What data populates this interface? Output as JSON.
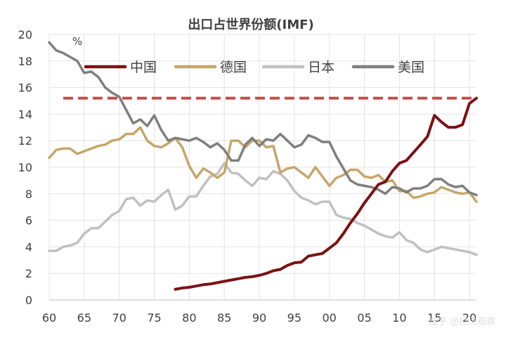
{
  "chart_data": {
    "type": "line",
    "title": "出口占世界份额(IMF)",
    "ylabel": "%",
    "xlabel": "",
    "xlim": [
      1960,
      2021
    ],
    "ylim": [
      0,
      20
    ],
    "grid": true,
    "legend_position": "top",
    "y_ticks": [
      0,
      2,
      4,
      6,
      8,
      10,
      12,
      14,
      16,
      18,
      20
    ],
    "x_ticks": [
      {
        "value": 1960,
        "label": "60"
      },
      {
        "value": 1965,
        "label": "65"
      },
      {
        "value": 1970,
        "label": "70"
      },
      {
        "value": 1975,
        "label": "75"
      },
      {
        "value": 1980,
        "label": "80"
      },
      {
        "value": 1985,
        "label": "85"
      },
      {
        "value": 1990,
        "label": "90"
      },
      {
        "value": 1995,
        "label": "95"
      },
      {
        "value": 2000,
        "label": "00"
      },
      {
        "value": 2005,
        "label": "05"
      },
      {
        "value": 2010,
        "label": "10"
      },
      {
        "value": 2015,
        "label": "15"
      },
      {
        "value": 2020,
        "label": "20"
      }
    ],
    "reference_line": {
      "y": 15.2,
      "x_start": 1962,
      "x_end": 2021,
      "color": "#c0504d",
      "style": "dashed"
    },
    "series": [
      {
        "name": "中国",
        "color": "#7b1113",
        "width": 4,
        "x": [
          1978,
          1979,
          1980,
          1981,
          1982,
          1983,
          1984,
          1985,
          1986,
          1987,
          1988,
          1989,
          1990,
          1991,
          1992,
          1993,
          1994,
          1995,
          1996,
          1997,
          1998,
          1999,
          2000,
          2001,
          2002,
          2003,
          2004,
          2005,
          2006,
          2007,
          2008,
          2009,
          2010,
          2011,
          2012,
          2013,
          2014,
          2015,
          2016,
          2017,
          2018,
          2019,
          2020,
          2021
        ],
        "values": [
          0.8,
          0.9,
          0.95,
          1.05,
          1.15,
          1.2,
          1.3,
          1.4,
          1.5,
          1.6,
          1.7,
          1.75,
          1.85,
          2.0,
          2.2,
          2.3,
          2.6,
          2.8,
          2.85,
          3.3,
          3.4,
          3.5,
          3.9,
          4.3,
          5.0,
          5.8,
          6.5,
          7.3,
          8.0,
          8.7,
          8.9,
          9.7,
          10.3,
          10.5,
          11.1,
          11.7,
          12.3,
          13.9,
          13.4,
          13.0,
          13.0,
          13.2,
          14.8,
          15.2
        ]
      },
      {
        "name": "德国",
        "color": "#c6a66a",
        "width": 3.5,
        "x": [
          1960,
          1961,
          1962,
          1963,
          1964,
          1965,
          1966,
          1967,
          1968,
          1969,
          1970,
          1971,
          1972,
          1973,
          1974,
          1975,
          1976,
          1977,
          1978,
          1979,
          1980,
          1981,
          1982,
          1983,
          1984,
          1985,
          1986,
          1987,
          1988,
          1989,
          1990,
          1991,
          1992,
          1993,
          1994,
          1995,
          1996,
          1997,
          1998,
          1999,
          2000,
          2001,
          2002,
          2003,
          2004,
          2005,
          2006,
          2007,
          2008,
          2009,
          2010,
          2011,
          2012,
          2013,
          2014,
          2015,
          2016,
          2017,
          2018,
          2019,
          2020,
          2021
        ],
        "values": [
          10.7,
          11.3,
          11.4,
          11.4,
          11.0,
          11.2,
          11.4,
          11.6,
          11.7,
          12.0,
          12.1,
          12.5,
          12.5,
          13.0,
          12.0,
          11.6,
          11.5,
          11.8,
          12.2,
          11.5,
          10.1,
          9.2,
          9.9,
          9.6,
          9.2,
          9.6,
          12.0,
          12.0,
          11.5,
          12.0,
          12.0,
          11.5,
          11.6,
          9.6,
          9.9,
          10.0,
          9.6,
          9.2,
          10.0,
          9.3,
          8.6,
          9.2,
          9.4,
          9.8,
          9.8,
          9.3,
          9.2,
          9.4,
          8.9,
          9.0,
          8.2,
          8.2,
          7.7,
          7.8,
          8.0,
          8.1,
          8.5,
          8.3,
          8.1,
          8.0,
          8.1,
          7.4
        ]
      },
      {
        "name": "日本",
        "color": "#c0c0c0",
        "width": 3.5,
        "x": [
          1960,
          1961,
          1962,
          1963,
          1964,
          1965,
          1966,
          1967,
          1968,
          1969,
          1970,
          1971,
          1972,
          1973,
          1974,
          1975,
          1976,
          1977,
          1978,
          1979,
          1980,
          1981,
          1982,
          1983,
          1984,
          1985,
          1986,
          1987,
          1988,
          1989,
          1990,
          1991,
          1992,
          1993,
          1994,
          1995,
          1996,
          1997,
          1998,
          1999,
          2000,
          2001,
          2002,
          2003,
          2004,
          2005,
          2006,
          2007,
          2008,
          2009,
          2010,
          2011,
          2012,
          2013,
          2014,
          2015,
          2016,
          2017,
          2018,
          2019,
          2020,
          2021
        ],
        "values": [
          3.7,
          3.7,
          4.0,
          4.1,
          4.3,
          5.0,
          5.4,
          5.4,
          5.9,
          6.4,
          6.7,
          7.6,
          7.7,
          7.1,
          7.5,
          7.4,
          7.9,
          8.3,
          6.8,
          7.1,
          7.8,
          7.8,
          8.6,
          9.3,
          9.5,
          10.3,
          9.6,
          9.5,
          9.0,
          8.6,
          9.2,
          9.1,
          9.7,
          9.5,
          9.0,
          8.2,
          7.7,
          7.5,
          7.2,
          7.4,
          7.4,
          6.4,
          6.2,
          6.1,
          5.8,
          5.6,
          5.3,
          5.0,
          4.8,
          4.7,
          5.1,
          4.5,
          4.3,
          3.8,
          3.6,
          3.8,
          4.0,
          3.9,
          3.8,
          3.7,
          3.6,
          3.4
        ]
      },
      {
        "name": "美国",
        "color": "#7f7f7f",
        "width": 3.5,
        "x": [
          1960,
          1961,
          1962,
          1963,
          1964,
          1965,
          1966,
          1967,
          1968,
          1969,
          1970,
          1971,
          1972,
          1973,
          1974,
          1975,
          1976,
          1977,
          1978,
          1979,
          1980,
          1981,
          1982,
          1983,
          1984,
          1985,
          1986,
          1987,
          1988,
          1989,
          1990,
          1991,
          1992,
          1993,
          1994,
          1995,
          1996,
          1997,
          1998,
          1999,
          2000,
          2001,
          2002,
          2003,
          2004,
          2005,
          2006,
          2007,
          2008,
          2009,
          2010,
          2011,
          2012,
          2013,
          2014,
          2015,
          2016,
          2017,
          2018,
          2019,
          2020,
          2021
        ],
        "values": [
          19.4,
          18.8,
          18.6,
          18.3,
          18.0,
          17.1,
          17.2,
          16.8,
          16.0,
          15.6,
          15.3,
          14.3,
          13.3,
          13.6,
          13.1,
          13.9,
          12.8,
          12.0,
          12.2,
          12.1,
          12.0,
          12.2,
          11.9,
          11.5,
          11.8,
          11.3,
          10.5,
          10.5,
          11.7,
          12.2,
          11.6,
          12.1,
          12.0,
          12.5,
          12.0,
          11.5,
          11.7,
          12.4,
          12.2,
          11.9,
          11.9,
          10.8,
          9.9,
          9.0,
          8.7,
          8.6,
          8.5,
          8.3,
          8.0,
          8.5,
          8.4,
          8.1,
          8.4,
          8.4,
          8.6,
          9.1,
          9.1,
          8.7,
          8.5,
          8.6,
          8.1,
          7.9
        ]
      }
    ]
  },
  "watermark": "知乎 @经济观察"
}
